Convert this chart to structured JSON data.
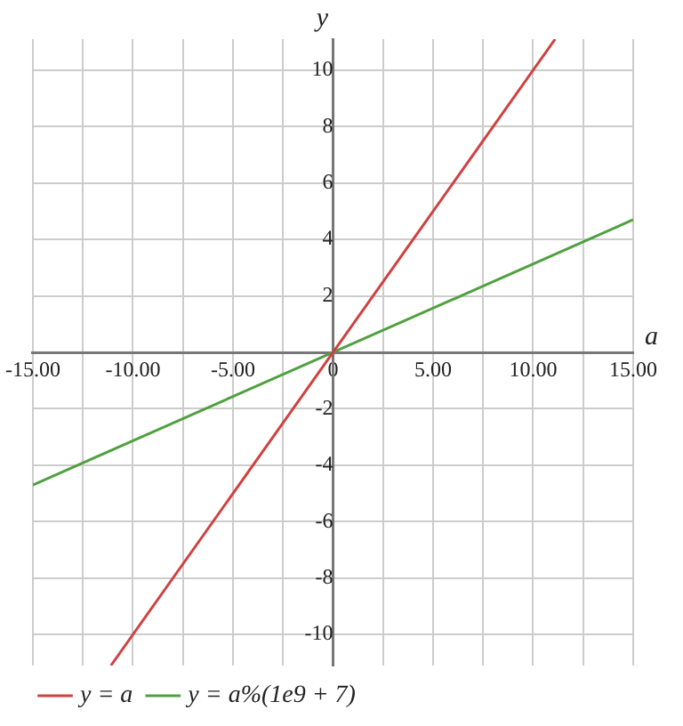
{
  "chart_data": {
    "type": "line",
    "xlabel": "a",
    "ylabel": "y",
    "xlim": [
      -15,
      15
    ],
    "ylim": [
      -11.1,
      11.1
    ],
    "xticks": [
      {
        "value": -15,
        "label": "-15.00"
      },
      {
        "value": -12.5,
        "label": null
      },
      {
        "value": -10,
        "label": "-10.00"
      },
      {
        "value": -7.5,
        "label": null
      },
      {
        "value": -5,
        "label": "-5.00"
      },
      {
        "value": -2.5,
        "label": null
      },
      0,
      {
        "value": 2.5,
        "label": null
      },
      {
        "value": 5,
        "label": "5.00"
      },
      {
        "value": 7.5,
        "label": null
      },
      {
        "value": 10,
        "label": "10.00"
      },
      {
        "value": 12.5,
        "label": null
      },
      {
        "value": 15,
        "label": "15.00"
      }
    ],
    "yticks": [
      -10,
      -8,
      -6,
      -4,
      -2,
      {
        "value": 0,
        "label": null
      },
      2,
      4,
      6,
      8,
      10
    ],
    "series": [
      {
        "name": "y = a",
        "color": "#d04040",
        "x": [
          -11.1,
          11.1
        ],
        "values": [
          -11.1,
          11.1
        ]
      },
      {
        "name": "y = a%(1e9 + 7)",
        "color": "#50a040",
        "x": [
          -15,
          15
        ],
        "values": [
          -4.7,
          4.7
        ]
      }
    ],
    "grid": true,
    "legend": "bottom left",
    "marker": "none",
    "line_style": "solid"
  }
}
